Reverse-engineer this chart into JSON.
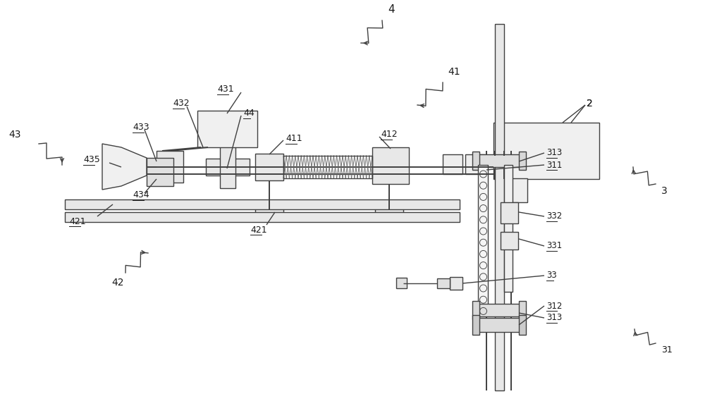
{
  "bg": "#ffffff",
  "fg": "#404040",
  "lw": 1.0,
  "lw2": 1.4,
  "fig_w": 10.0,
  "fig_h": 5.59,
  "dpi": 100,
  "xlim": [
    0,
    10
  ],
  "ylim": [
    0,
    5.59
  ]
}
